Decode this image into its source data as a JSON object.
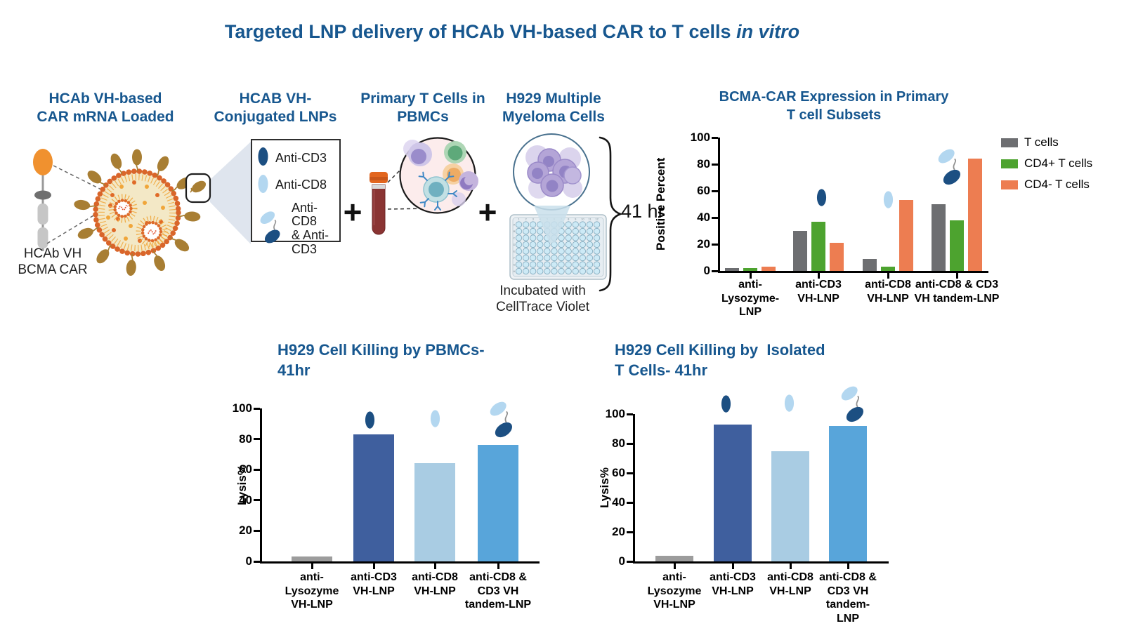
{
  "page_title": {
    "text": "Targeted LNP delivery of HCAb VH-based CAR to T cells ",
    "italic_suffix": "in vitro"
  },
  "colors": {
    "heading_blue": "#17578f",
    "gray_series": "#6d6e71",
    "green_series": "#4da32f",
    "orange_series": "#ed7d51",
    "dark_blue_ligand": "#1c4f82",
    "light_blue_ligand": "#b3d7f0",
    "control_gray_bar": "#9c9c9c",
    "dark_blue_bar": "#3f5f9e",
    "light_blue_bar": "#a9cce3",
    "medium_blue_bar": "#58a5da",
    "lnp_membrane_orange": "#d9652a",
    "lnp_inner_tan": "#f3e8c6",
    "ligand_brown": "#a87e33"
  },
  "schematic": {
    "lnp_heading": "HCAb VH-based\nCAR mRNA Loaded",
    "car_caption": "HCAb VH\nBCMA CAR",
    "ligand_legend_heading": "HCAB VH-\nConjugated LNPs",
    "ligand_legend_items": [
      {
        "icon": "anti-cd3-ligand-icon",
        "label": "Anti-CD3"
      },
      {
        "icon": "anti-cd8-ligand-icon",
        "label": "Anti-CD8"
      },
      {
        "icon": "tandem-ligand-icon",
        "label": "Anti-CD8\n& Anti-\nCD3"
      }
    ],
    "plus_sign": "+",
    "pbmc_heading": "Primary T Cells in\nPBMCs",
    "h929_heading": "H929 Multiple\nMyeloma Cells",
    "plate_caption": "Incubated with\nCellTrace Violet",
    "incubation_time": "41 hr"
  },
  "chart_data": [
    {
      "type": "bar",
      "title": "BCMA-CAR Expression in Primary\nT cell Subsets",
      "ylabel": "Positive Percent",
      "ylim": [
        0,
        100
      ],
      "yticks": [
        0,
        20,
        40,
        60,
        80,
        100
      ],
      "legend_position": "right",
      "grid": false,
      "categories": [
        "anti-\nLysozyme-\nLNP",
        "anti-CD3\nVH-LNP",
        "anti-CD8\nVH-LNP",
        "anti-CD8 & CD3\nVH tandem-LNP"
      ],
      "series": [
        {
          "name": "T cells",
          "color_key": "gray_series",
          "values": [
            2,
            30,
            9,
            50
          ]
        },
        {
          "name": "CD4+ T cells",
          "color_key": "green_series",
          "values": [
            2,
            37,
            3,
            38
          ]
        },
        {
          "name": "CD4- T cells",
          "color_key": "orange_series",
          "values": [
            3,
            21,
            53,
            84
          ]
        }
      ],
      "group_icons": [
        null,
        "anti-cd3",
        "anti-cd8",
        "tandem"
      ]
    },
    {
      "type": "bar",
      "title": "H929 Cell Killing by PBMCs-\n41hr",
      "ylabel": "Lysis%",
      "ylim": [
        0,
        100
      ],
      "yticks": [
        0,
        20,
        40,
        60,
        80,
        100
      ],
      "grid": false,
      "categories": [
        "anti-\nLysozyme\nVH-LNP",
        "anti-CD3\nVH-LNP",
        "anti-CD8\nVH-LNP",
        "anti-CD8 &\nCD3 VH\ntandem-LNP"
      ],
      "values": [
        3,
        83,
        64,
        76
      ],
      "bar_color_keys": [
        "control_gray_bar",
        "dark_blue_bar",
        "light_blue_bar",
        "medium_blue_bar"
      ],
      "bar_icons": [
        null,
        "anti-cd3",
        "anti-cd8",
        "tandem"
      ]
    },
    {
      "type": "bar",
      "title": "H929 Cell Killing by  Isolated\nT Cells- 41hr",
      "ylabel": "Lysis%",
      "ylim": [
        0,
        100
      ],
      "yticks": [
        0,
        20,
        40,
        60,
        80,
        100
      ],
      "grid": false,
      "categories": [
        "anti-\nLysozyme\nVH-LNP",
        "anti-CD3\nVH-LNP",
        "anti-CD8\nVH-LNP",
        "anti-CD8 &\nCD3 VH\ntandem-\nLNP"
      ],
      "values": [
        4,
        93,
        75,
        92
      ],
      "bar_color_keys": [
        "control_gray_bar",
        "dark_blue_bar",
        "light_blue_bar",
        "medium_blue_bar"
      ],
      "bar_icons": [
        null,
        "anti-cd3",
        "anti-cd8",
        "tandem"
      ]
    }
  ]
}
